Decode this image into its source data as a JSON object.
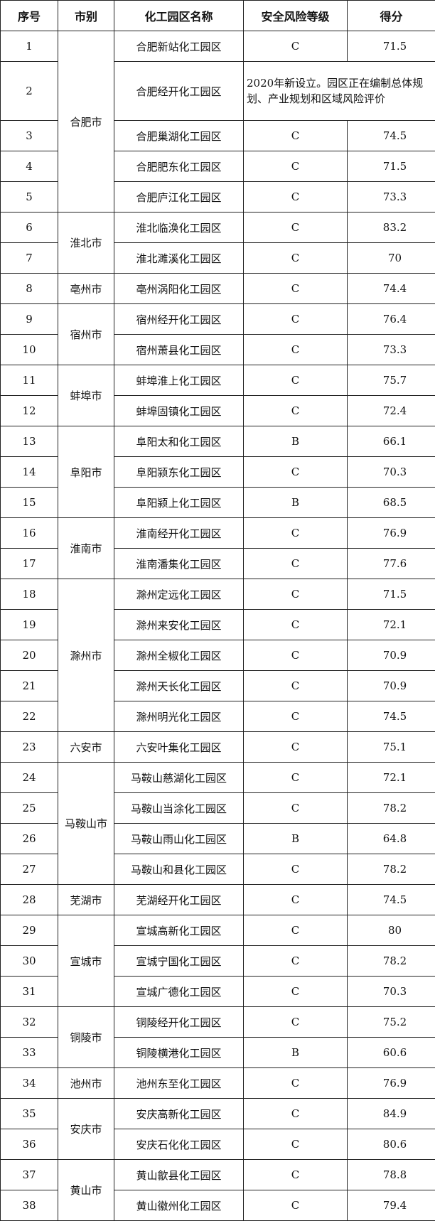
{
  "headers": [
    "序号",
    "市别",
    "化工园区名称",
    "安全风险等级",
    "得分"
  ],
  "groups": [
    {
      "city": "合肥市",
      "rows": [
        {
          "no": "1",
          "name": "合肥新站化工园区",
          "level": "C",
          "score": "71.5"
        },
        {
          "no": "2",
          "name": "合肥经开化工园区",
          "note": "2020年新设立。园区正在编制总体规划、产业规划和区域风险评价"
        },
        {
          "no": "3",
          "name": "合肥巢湖化工园区",
          "level": "C",
          "score": "74.5"
        },
        {
          "no": "4",
          "name": "合肥肥东化工园区",
          "level": "C",
          "score": "71.5"
        },
        {
          "no": "5",
          "name": "合肥庐江化工园区",
          "level": "C",
          "score": "73.3"
        }
      ]
    },
    {
      "city": "淮北市",
      "rows": [
        {
          "no": "6",
          "name": "淮北临涣化工园区",
          "level": "C",
          "score": "83.2"
        },
        {
          "no": "7",
          "name": "淮北濉溪化工园区",
          "level": "C",
          "score": "70"
        }
      ]
    },
    {
      "city": "亳州市",
      "rows": [
        {
          "no": "8",
          "name": "亳州涡阳化工园区",
          "level": "C",
          "score": "74.4"
        }
      ]
    },
    {
      "city": "宿州市",
      "rows": [
        {
          "no": "9",
          "name": "宿州经开化工园区",
          "level": "C",
          "score": "76.4"
        },
        {
          "no": "10",
          "name": "宿州萧县化工园区",
          "level": "C",
          "score": "73.3"
        }
      ]
    },
    {
      "city": "蚌埠市",
      "rows": [
        {
          "no": "11",
          "name": "蚌埠淮上化工园区",
          "level": "C",
          "score": "75.7"
        },
        {
          "no": "12",
          "name": "蚌埠固镇化工园区",
          "level": "C",
          "score": "72.4"
        }
      ]
    },
    {
      "city": "阜阳市",
      "rows": [
        {
          "no": "13",
          "name": "阜阳太和化工园区",
          "level": "B",
          "score": "66.1"
        },
        {
          "no": "14",
          "name": "阜阳颍东化工园区",
          "level": "C",
          "score": "70.3"
        },
        {
          "no": "15",
          "name": "阜阳颍上化工园区",
          "level": "B",
          "score": "68.5"
        }
      ]
    },
    {
      "city": "淮南市",
      "rows": [
        {
          "no": "16",
          "name": "淮南经开化工园区",
          "level": "C",
          "score": "76.9"
        },
        {
          "no": "17",
          "name": "淮南潘集化工园区",
          "level": "C",
          "score": "77.6"
        }
      ]
    },
    {
      "city": "滁州市",
      "rows": [
        {
          "no": "18",
          "name": "滁州定远化工园区",
          "level": "C",
          "score": "71.5"
        },
        {
          "no": "19",
          "name": "滁州来安化工园区",
          "level": "C",
          "score": "72.1"
        },
        {
          "no": "20",
          "name": "滁州全椒化工园区",
          "level": "C",
          "score": "70.9"
        },
        {
          "no": "21",
          "name": "滁州天长化工园区",
          "level": "C",
          "score": "70.9"
        },
        {
          "no": "22",
          "name": "滁州明光化工园区",
          "level": "C",
          "score": "74.5"
        }
      ]
    },
    {
      "city": "六安市",
      "rows": [
        {
          "no": "23",
          "name": "六安叶集化工园区",
          "level": "C",
          "score": "75.1"
        }
      ]
    },
    {
      "city": "马鞍山市",
      "rows": [
        {
          "no": "24",
          "name": "马鞍山慈湖化工园区",
          "level": "C",
          "score": "72.1"
        },
        {
          "no": "25",
          "name": "马鞍山当涂化工园区",
          "level": "C",
          "score": "78.2"
        },
        {
          "no": "26",
          "name": "马鞍山雨山化工园区",
          "level": "B",
          "score": "64.8"
        },
        {
          "no": "27",
          "name": "马鞍山和县化工园区",
          "level": "C",
          "score": "78.2"
        }
      ]
    },
    {
      "city": "芜湖市",
      "rows": [
        {
          "no": "28",
          "name": "芜湖经开化工园区",
          "level": "C",
          "score": "74.5"
        }
      ]
    },
    {
      "city": "宣城市",
      "rows": [
        {
          "no": "29",
          "name": "宣城高新化工园区",
          "level": "C",
          "score": "80"
        },
        {
          "no": "30",
          "name": "宣城宁国化工园区",
          "level": "C",
          "score": "78.2"
        },
        {
          "no": "31",
          "name": "宣城广德化工园区",
          "level": "C",
          "score": "70.3"
        }
      ]
    },
    {
      "city": "铜陵市",
      "rows": [
        {
          "no": "32",
          "name": "铜陵经开化工园区",
          "level": "C",
          "score": "75.2"
        },
        {
          "no": "33",
          "name": "铜陵横港化工园区",
          "level": "B",
          "score": "60.6"
        }
      ]
    },
    {
      "city": "池州市",
      "rows": [
        {
          "no": "34",
          "name": "池州东至化工园区",
          "level": "C",
          "score": "76.9"
        }
      ]
    },
    {
      "city": "安庆市",
      "rows": [
        {
          "no": "35",
          "name": "安庆高新化工园区",
          "level": "C",
          "score": "84.9"
        },
        {
          "no": "36",
          "name": "安庆石化化工园区",
          "level": "C",
          "score": "80.6"
        }
      ]
    },
    {
      "city": "黄山市",
      "rows": [
        {
          "no": "37",
          "name": "黄山歙县化工园区",
          "level": "C",
          "score": "78.8"
        },
        {
          "no": "38",
          "name": "黄山徽州化工园区",
          "level": "C",
          "score": "79.4"
        }
      ]
    }
  ]
}
